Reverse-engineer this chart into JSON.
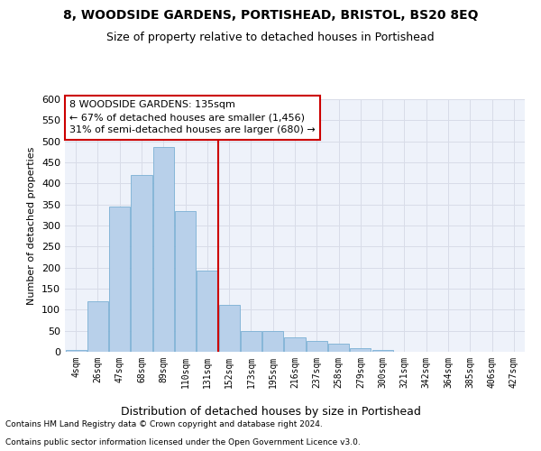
{
  "title": "8, WOODSIDE GARDENS, PORTISHEAD, BRISTOL, BS20 8EQ",
  "subtitle": "Size of property relative to detached houses in Portishead",
  "xlabel": "Distribution of detached houses by size in Portishead",
  "ylabel": "Number of detached properties",
  "categories": [
    "4sqm",
    "26sqm",
    "47sqm",
    "68sqm",
    "89sqm",
    "110sqm",
    "131sqm",
    "152sqm",
    "173sqm",
    "195sqm",
    "216sqm",
    "237sqm",
    "258sqm",
    "279sqm",
    "300sqm",
    "321sqm",
    "342sqm",
    "364sqm",
    "385sqm",
    "406sqm",
    "427sqm"
  ],
  "values": [
    5,
    120,
    345,
    420,
    487,
    335,
    193,
    112,
    50,
    50,
    35,
    25,
    20,
    8,
    4,
    1,
    1,
    0,
    1,
    0,
    0
  ],
  "bar_color": "#b8d0ea",
  "bar_edge_color": "#7aafd4",
  "vline_color": "#cc0000",
  "annotation_title": "8 WOODSIDE GARDENS: 135sqm",
  "annotation_line1": "← 67% of detached houses are smaller (1,456)",
  "annotation_line2": "31% of semi-detached houses are larger (680) →",
  "annotation_box_color": "#cc0000",
  "ylim": [
    0,
    600
  ],
  "yticks": [
    0,
    50,
    100,
    150,
    200,
    250,
    300,
    350,
    400,
    450,
    500,
    550,
    600
  ],
  "bg_color": "#eef2fa",
  "grid_color": "#d8dce8",
  "footer1": "Contains HM Land Registry data © Crown copyright and database right 2024.",
  "footer2": "Contains public sector information licensed under the Open Government Licence v3.0."
}
